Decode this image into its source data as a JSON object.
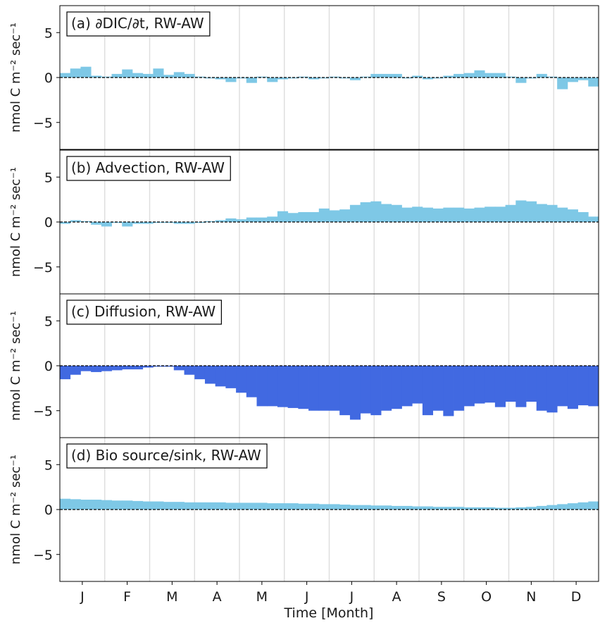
{
  "figure": {
    "xlabel": "Time [Month]",
    "month_labels": [
      "J",
      "F",
      "M",
      "A",
      "M",
      "J",
      "J",
      "A",
      "S",
      "O",
      "N",
      "D"
    ]
  },
  "colors": {
    "light_bar": "#7ec8e6",
    "dark_bar": "#4169e1",
    "zero_line": "#000000",
    "month_grid": "#dddddd"
  },
  "chart_data": [
    {
      "type": "bar",
      "title": "(a) ∂DIC/∂t, RW-AW",
      "ylabel": "nmol C m⁻² sec⁻¹",
      "ylim": [
        -8,
        8
      ],
      "yticks": [
        "5",
        "0",
        "−5"
      ],
      "x": "weeks 1-52 of the year",
      "color": "light",
      "values": [
        0.5,
        1.0,
        1.2,
        0.2,
        0.1,
        0.4,
        0.9,
        0.5,
        0.4,
        1.0,
        0.3,
        0.6,
        0.4,
        0.1,
        -0.1,
        -0.2,
        -0.5,
        -0.1,
        -0.6,
        0.1,
        -0.5,
        -0.2,
        -0.1,
        0.1,
        -0.2,
        -0.1,
        0.1,
        -0.1,
        -0.3,
        0.1,
        0.4,
        0.4,
        0.4,
        -0.1,
        0.2,
        -0.2,
        -0.1,
        0.2,
        0.4,
        0.5,
        0.8,
        0.5,
        0.5,
        0.1,
        -0.6,
        -0.1,
        0.4,
        0.1,
        -1.3,
        -0.5,
        -0.3,
        -1.0
      ]
    },
    {
      "type": "bar",
      "title": "(b) Advection, RW-AW",
      "ylabel": "nmol C m⁻² sec⁻¹",
      "ylim": [
        -8,
        8
      ],
      "yticks": [
        "5",
        "0",
        "−5"
      ],
      "x": "weeks 1-52 of the year",
      "color": "light",
      "values": [
        -0.2,
        0.2,
        0.1,
        -0.3,
        -0.5,
        -0.1,
        -0.5,
        -0.2,
        -0.2,
        -0.1,
        -0.1,
        -0.2,
        -0.2,
        -0.1,
        0.1,
        0.2,
        0.4,
        0.3,
        0.5,
        0.5,
        0.6,
        1.2,
        1.0,
        1.1,
        1.1,
        1.5,
        1.3,
        1.4,
        1.9,
        2.2,
        2.3,
        2.0,
        1.9,
        1.6,
        1.7,
        1.6,
        1.5,
        1.6,
        1.6,
        1.5,
        1.6,
        1.7,
        1.7,
        1.9,
        2.4,
        2.3,
        2.0,
        1.9,
        1.6,
        1.4,
        1.1,
        0.6
      ]
    },
    {
      "type": "bar",
      "title": "(c) Diffusion, RW-AW",
      "ylabel": "nmol C m⁻² sec⁻¹",
      "ylim": [
        -8,
        8
      ],
      "yticks": [
        "5",
        "0",
        "−5"
      ],
      "x": "weeks 1-52 of the year",
      "color": "dark",
      "values": [
        -1.5,
        -1.0,
        -0.6,
        -0.7,
        -0.6,
        -0.5,
        -0.4,
        -0.4,
        -0.2,
        -0.1,
        -0.1,
        -0.5,
        -1.0,
        -1.5,
        -2.0,
        -2.3,
        -2.5,
        -3.0,
        -3.5,
        -4.5,
        -4.5,
        -4.6,
        -4.7,
        -4.8,
        -5.0,
        -5.0,
        -5.0,
        -5.5,
        -6.0,
        -5.3,
        -5.5,
        -5.0,
        -4.8,
        -4.5,
        -4.2,
        -5.5,
        -5.0,
        -5.6,
        -5.0,
        -4.5,
        -4.2,
        -4.1,
        -4.6,
        -4.0,
        -4.6,
        -4.0,
        -5.0,
        -5.2,
        -4.5,
        -4.8,
        -4.4,
        -4.5
      ]
    },
    {
      "type": "bar",
      "title": "(d) Bio source/sink, RW-AW",
      "ylabel": "nmol C m⁻² sec⁻¹",
      "ylim": [
        -8,
        8
      ],
      "yticks": [
        "5",
        "0",
        "−5"
      ],
      "x": "weeks 1-52 of the year",
      "color": "light",
      "values": [
        1.2,
        1.15,
        1.1,
        1.1,
        1.05,
        1.0,
        1.0,
        0.95,
        0.9,
        0.9,
        0.85,
        0.85,
        0.8,
        0.8,
        0.8,
        0.8,
        0.75,
        0.75,
        0.75,
        0.75,
        0.7,
        0.7,
        0.7,
        0.65,
        0.65,
        0.6,
        0.6,
        0.55,
        0.5,
        0.5,
        0.45,
        0.45,
        0.4,
        0.4,
        0.35,
        0.35,
        0.3,
        0.3,
        0.3,
        0.25,
        0.25,
        0.25,
        0.2,
        0.2,
        0.25,
        0.3,
        0.4,
        0.5,
        0.6,
        0.7,
        0.8,
        0.9
      ]
    }
  ]
}
